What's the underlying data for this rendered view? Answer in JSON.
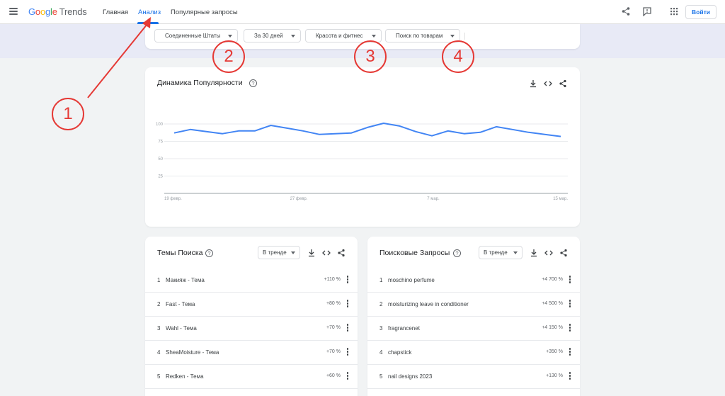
{
  "header": {
    "logo_google": [
      "G",
      "o",
      "o",
      "g",
      "l",
      "e"
    ],
    "logo_trends": "Trends",
    "tabs": [
      {
        "label": "Главная"
      },
      {
        "label": "Анализ"
      },
      {
        "label": "Популярные запросы"
      }
    ],
    "active_tab": "Анализ",
    "icons": [
      "share-icon",
      "feedback-icon",
      "apps-grid-icon"
    ],
    "login_label": "Войти"
  },
  "filters": [
    {
      "label": "Соединенные Штаты"
    },
    {
      "label": "За 30 дней"
    },
    {
      "label": "Красота и фитнес"
    },
    {
      "label": "Поиск по товарам"
    }
  ],
  "interest_chart": {
    "title": "Динамика Популярности",
    "help": "?",
    "actions": [
      "download-icon",
      "embed-code-icon",
      "share-icon"
    ]
  },
  "chart_data": {
    "type": "line",
    "yticks": [
      "100",
      "75",
      "50",
      "25"
    ],
    "ylim": [
      0,
      100
    ],
    "xticks": [
      "19 февр.",
      "27 февр.",
      "7 мар.",
      "15 мар."
    ],
    "grid": true,
    "color": "#4285f4",
    "series": [
      {
        "values": [
          87,
          92,
          89,
          86,
          90,
          90,
          98,
          94,
          90,
          85,
          86,
          87,
          95,
          101,
          97,
          89,
          83,
          90,
          86,
          88,
          96,
          92,
          88,
          85,
          82
        ]
      }
    ]
  },
  "topics": {
    "title": "Темы Поиска",
    "help": "?",
    "filter_label": "В тренде",
    "rows": [
      {
        "rank": "1",
        "name": "Макияж - Тема",
        "value": "+110 %"
      },
      {
        "rank": "2",
        "name": "Fast - Тема",
        "value": "+80 %"
      },
      {
        "rank": "3",
        "name": "Wahl - Тема",
        "value": "+70 %"
      },
      {
        "rank": "4",
        "name": "SheaMoisture - Тема",
        "value": "+70 %"
      },
      {
        "rank": "5",
        "name": "Redken - Тема",
        "value": "+60 %"
      }
    ]
  },
  "queries": {
    "title": "Поисковые Запросы",
    "help": "?",
    "filter_label": "В тренде",
    "rows": [
      {
        "rank": "1",
        "name": "moschino perfume",
        "value": "+4 700 %"
      },
      {
        "rank": "2",
        "name": "moisturizing leave in conditioner",
        "value": "+4 500 %"
      },
      {
        "rank": "3",
        "name": "fragrancenet",
        "value": "+4 150 %"
      },
      {
        "rank": "4",
        "name": "chapstick",
        "value": "+350 %"
      },
      {
        "rank": "5",
        "name": "nail designs 2023",
        "value": "+130 %"
      }
    ]
  },
  "annotations": {
    "labels": [
      "1",
      "2",
      "3",
      "4"
    ],
    "color": "#e53935"
  }
}
